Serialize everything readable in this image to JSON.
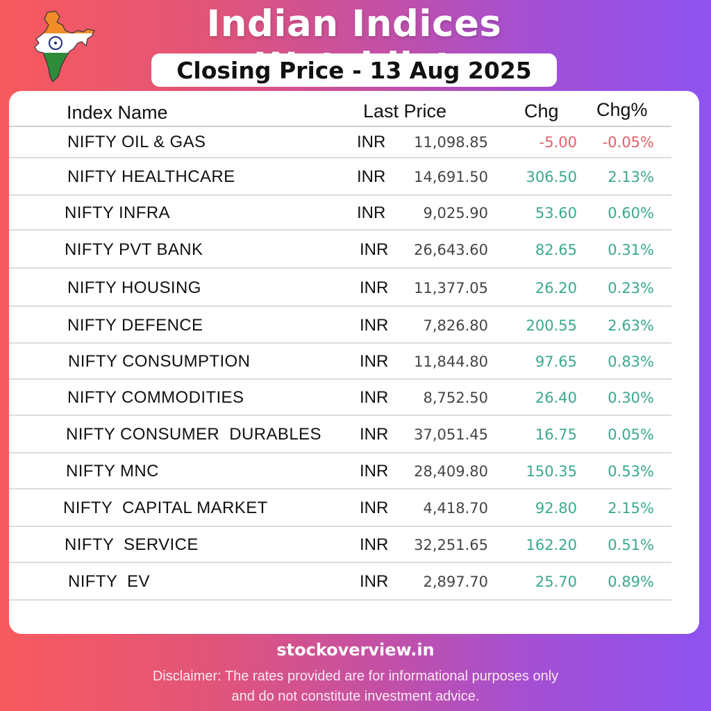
{
  "header": {
    "title": "Indian Indices Watchlist",
    "subtitle": "Closing Price - 13 Aug 2025",
    "logo_icon": "india-flag-map-icon"
  },
  "table": {
    "columns": {
      "name": "Index Name",
      "price": "Last Price",
      "chg": "Chg",
      "pct": "Chg%"
    },
    "rows": [
      {
        "name": "NIFTY OIL & GAS",
        "currency": "INR",
        "price": "11,098.85",
        "chg": "-5.00",
        "pct": "-0.05%",
        "dir": "neg"
      },
      {
        "name": "NIFTY HEALTHCARE",
        "currency": "INR",
        "price": "14,691.50",
        "chg": "306.50",
        "pct": "2.13%",
        "dir": "pos"
      },
      {
        "name": "NIFTY INFRA",
        "currency": "INR",
        "price": "9,025.90",
        "chg": "53.60",
        "pct": "0.60%",
        "dir": "pos"
      },
      {
        "name": "NIFTY PVT BANK",
        "currency": "INR",
        "price": "26,643.60",
        "chg": "82.65",
        "pct": "0.31%",
        "dir": "pos"
      },
      {
        "name": "NIFTY HOUSING",
        "currency": "INR",
        "price": "11,377.05",
        "chg": "26.20",
        "pct": "0.23%",
        "dir": "pos"
      },
      {
        "name": "NIFTY DEFENCE",
        "currency": "INR",
        "price": "7,826.80",
        "chg": "200.55",
        "pct": "2.63%",
        "dir": "pos"
      },
      {
        "name": "NIFTY CONSUMPTION",
        "currency": "INR",
        "price": "11,844.80",
        "chg": "97.65",
        "pct": "0.83%",
        "dir": "pos"
      },
      {
        "name": "NIFTY COMMODITIES",
        "currency": "INR",
        "price": "8,752.50",
        "chg": "26.40",
        "pct": "0.30%",
        "dir": "pos"
      },
      {
        "name": "NIFTY CONSUMER  DURABLES",
        "currency": "INR",
        "price": "37,051.45",
        "chg": "16.75",
        "pct": "0.05%",
        "dir": "pos"
      },
      {
        "name": "NIFTY MNC",
        "currency": "INR",
        "price": "28,409.80",
        "chg": "150.35",
        "pct": "0.53%",
        "dir": "pos"
      },
      {
        "name": "NIFTY  CAPITAL MARKET",
        "currency": "INR",
        "price": "4,418.70",
        "chg": "92.80",
        "pct": "2.15%",
        "dir": "pos"
      },
      {
        "name": "NIFTY  SERVICE",
        "currency": "INR",
        "price": "32,251.65",
        "chg": "162.20",
        "pct": "0.51%",
        "dir": "pos"
      },
      {
        "name": "NIFTY  EV",
        "currency": "INR",
        "price": "2,897.70",
        "chg": "25.70",
        "pct": "0.89%",
        "dir": "pos"
      }
    ]
  },
  "footer": {
    "site": "stockoverview.in",
    "disclaimer_line1": "Disclaimer: The rates provided are for informational purposes only",
    "disclaimer_line2": "and do not constitute investment advice."
  },
  "colors": {
    "positive": "#3aa88f",
    "negative": "#e0606a",
    "gradient_start": "#f85a5e",
    "gradient_end": "#8d52f0"
  }
}
